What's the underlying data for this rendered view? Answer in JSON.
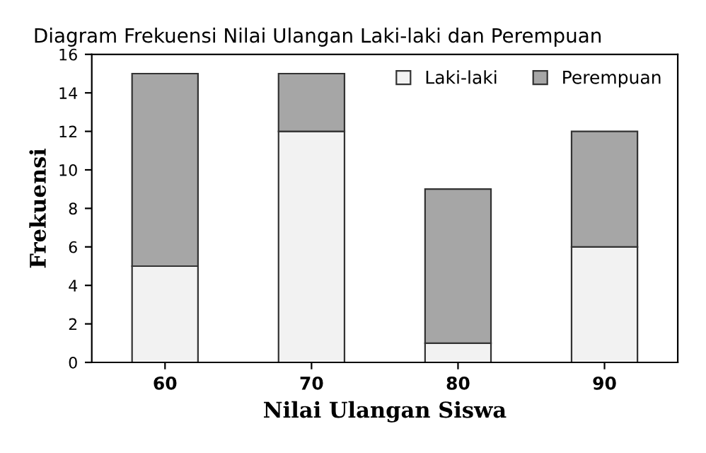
{
  "chart_data": {
    "type": "bar",
    "stacked": true,
    "title": "Diagram Frekuensi Nilai Ulangan Laki-laki dan Perempuan",
    "xlabel": "Nilai Ulangan Siswa",
    "ylabel": "Frekuensi",
    "categories": [
      "60",
      "70",
      "80",
      "90"
    ],
    "series": [
      {
        "name": "Laki-laki",
        "color": "#f2f2f2",
        "values": [
          5,
          12,
          1,
          6
        ]
      },
      {
        "name": "Perempuan",
        "color": "#a6a6a6",
        "values": [
          10,
          3,
          8,
          6
        ]
      }
    ],
    "ylim": [
      0,
      16
    ],
    "yticks": [
      0,
      2,
      4,
      6,
      8,
      10,
      12,
      14,
      16
    ],
    "grid": false,
    "legend": "top right"
  }
}
